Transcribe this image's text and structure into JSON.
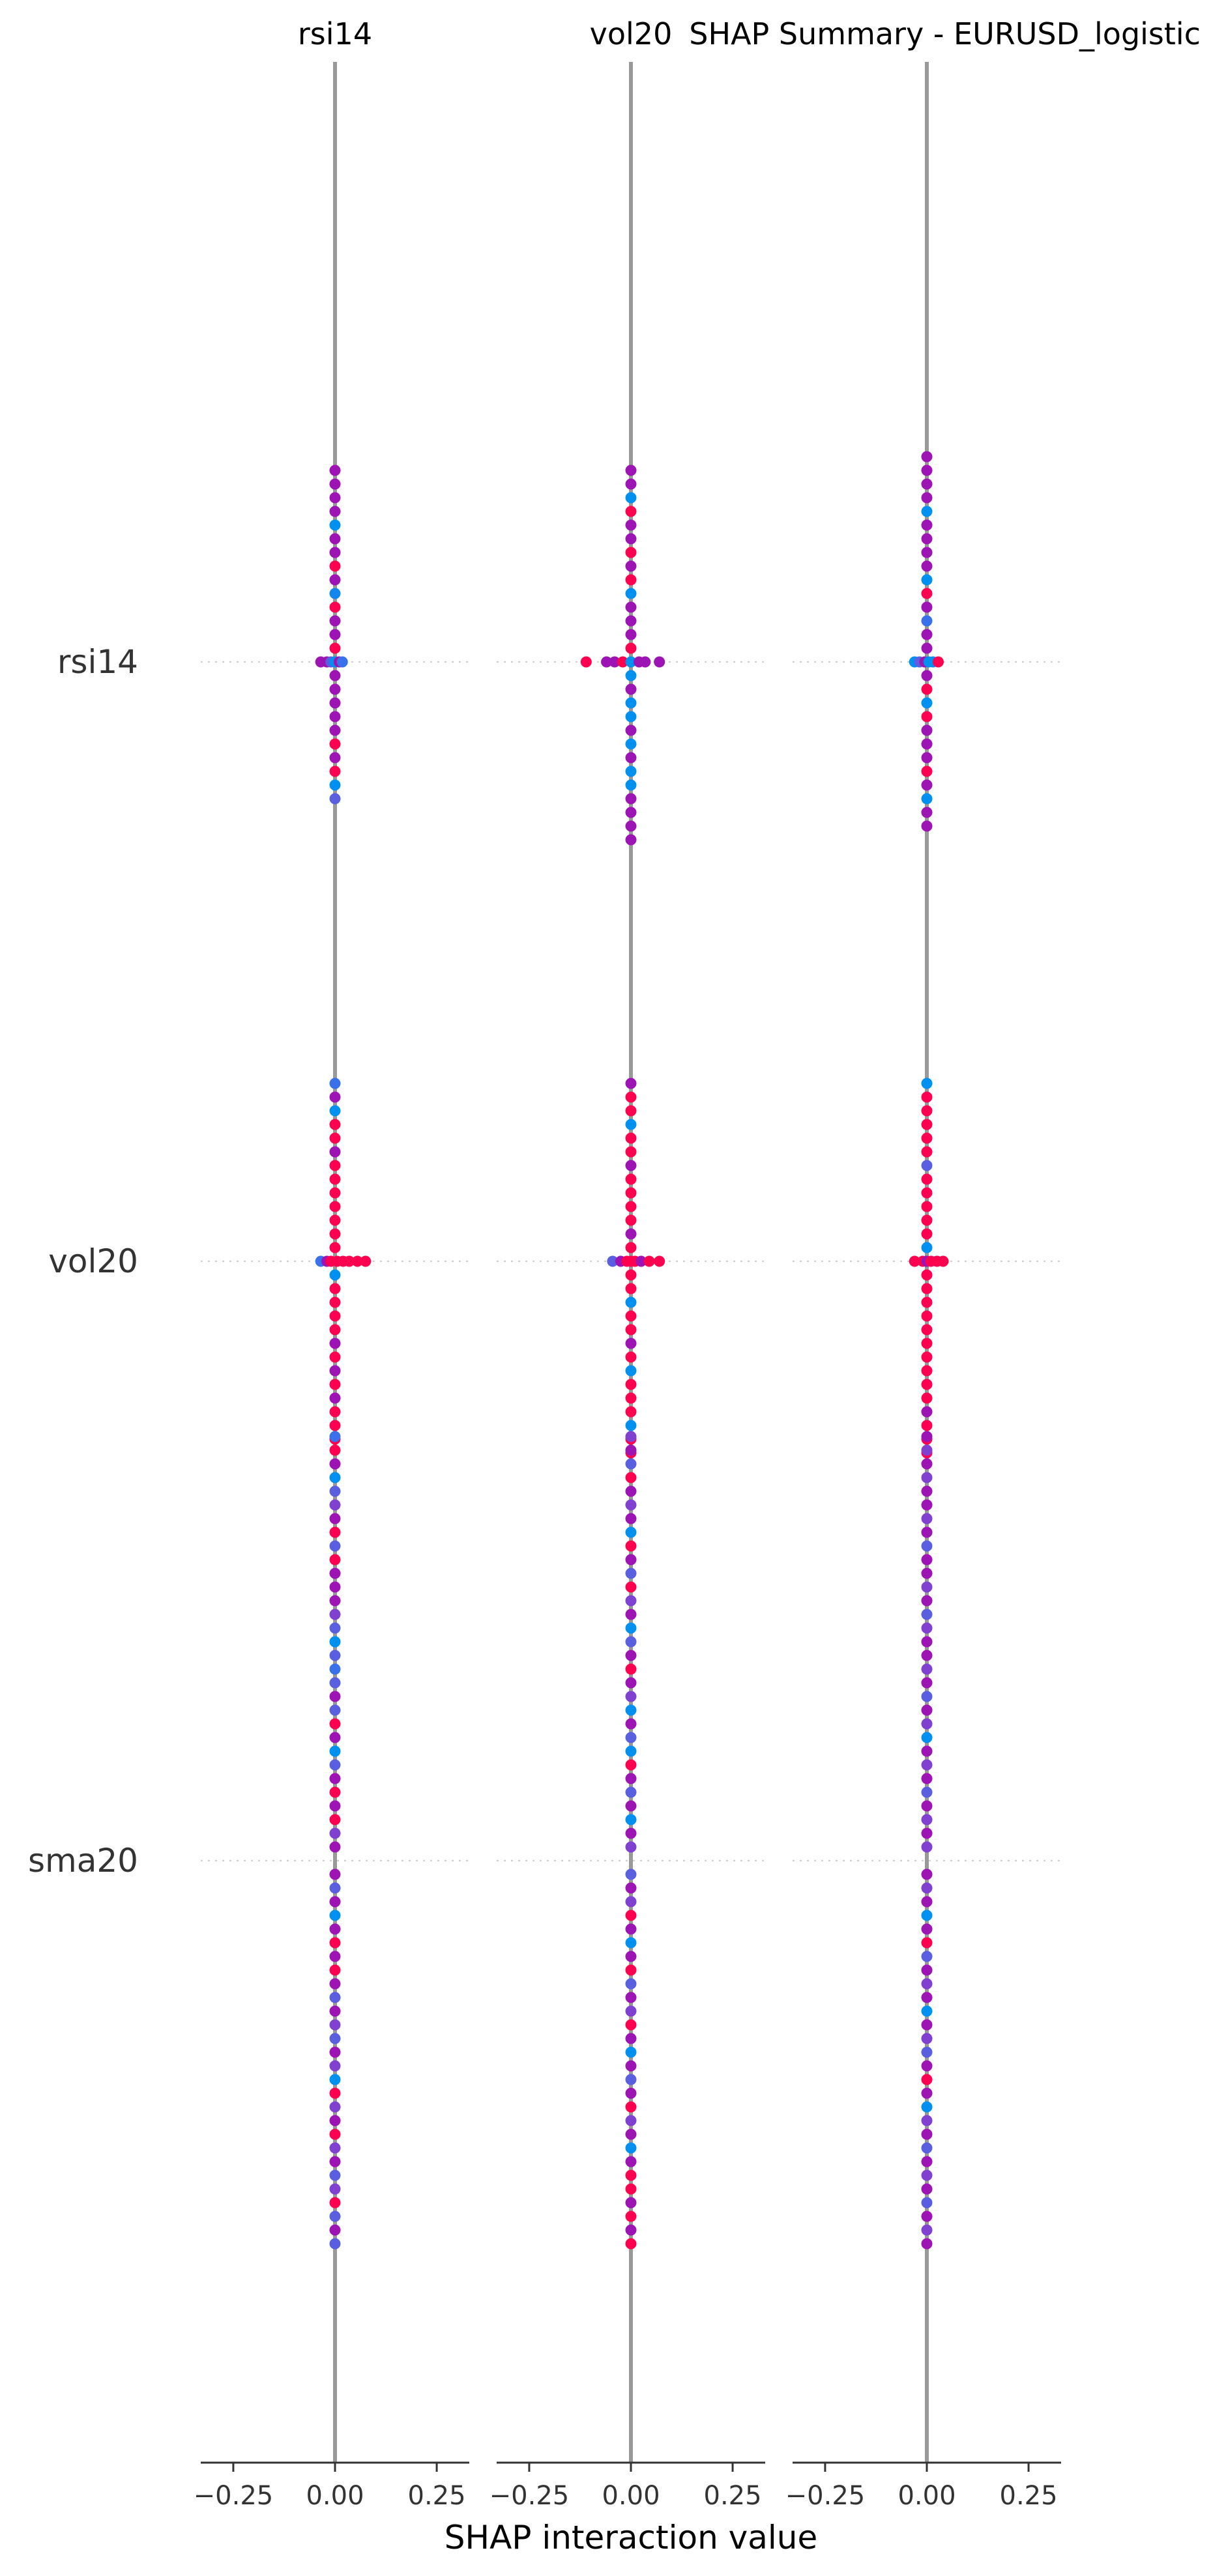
{
  "chart_data": {
    "type": "scatter",
    "subtype": "shap-interaction-summary",
    "title": "SHAP Summary - EURUSD_logistic",
    "xlabel": "SHAP interaction value",
    "xlim": [
      -0.33,
      0.33
    ],
    "xticks": [
      -0.25,
      0.0,
      0.25
    ],
    "xtick_labels": [
      "−0.25",
      "0.00",
      "0.25"
    ],
    "features": [
      "rsi14",
      "vol20",
      "sma20"
    ],
    "panels": [
      {
        "title": "rsi14"
      },
      {
        "title": "vol20"
      },
      {
        "title": ""
      }
    ],
    "rows": [
      {
        "label": "rsi14",
        "panels": [
          {
            "spread": [
              -0.035,
              -0.02,
              -0.01,
              0.0,
              0.01,
              0.018
            ],
            "spread_colors": [
              "#9c14b4",
              "#9c14b4",
              "#5a5fe0",
              "#0090f0",
              "#9c14b4",
              "#3a70ea"
            ],
            "stack_up": [
              "#ff0050",
              "#9c14b4",
              "#9c14b4",
              "#ff0050",
              "#1486ee",
              "#9c14b4",
              "#ff0050",
              "#9c14b4",
              "#9c14b4",
              "#0090f0",
              "#9c14b4",
              "#9c14b4",
              "#9c14b4",
              "#9c14b4"
            ],
            "stack_down": [
              "#9c14b4",
              "#9c14b4",
              "#9c14b4",
              "#9c14b4",
              "#9c14b4",
              "#ff0050",
              "#9c14b4",
              "#ff0050",
              "#0090f0",
              "#5a5fe0"
            ]
          },
          {
            "spread": [
              -0.11,
              -0.06,
              -0.04,
              -0.02,
              0.0,
              0.02,
              0.035,
              0.07
            ],
            "spread_colors": [
              "#ff0050",
              "#9c14b4",
              "#9c14b4",
              "#ff0050",
              "#0090f0",
              "#9c14b4",
              "#9c14b4",
              "#9c14b4"
            ],
            "stack_up": [
              "#ff0050",
              "#9c14b4",
              "#9c14b4",
              "#9c14b4",
              "#0090f0",
              "#ff0050",
              "#9c14b4",
              "#ff0050",
              "#9c14b4",
              "#9c14b4",
              "#ff0050",
              "#0090f0",
              "#9c14b4",
              "#9c14b4"
            ],
            "stack_down": [
              "#0090f0",
              "#9c14b4",
              "#0090f0",
              "#0090f0",
              "#9c14b4",
              "#0090f0",
              "#9c14b4",
              "#0090f0",
              "#0090f0",
              "#9c14b4",
              "#9c14b4",
              "#9c14b4",
              "#9c14b4"
            ]
          },
          {
            "spread": [
              -0.03,
              -0.018,
              -0.005,
              0.005,
              0.015,
              0.028
            ],
            "spread_colors": [
              "#0090f0",
              "#5a5fe0",
              "#9c14b4",
              "#0090f0",
              "#0090f0",
              "#ff0050"
            ],
            "stack_up": [
              "#9c14b4",
              "#9c14b4",
              "#3a70ea",
              "#9c14b4",
              "#ff0050",
              "#0090f0",
              "#9c14b4",
              "#9c14b4",
              "#9c14b4",
              "#9c14b4",
              "#0090f0",
              "#9c14b4",
              "#9c14b4",
              "#9c14b4",
              "#9c14b4"
            ],
            "stack_down": [
              "#9c14b4",
              "#ff0050",
              "#0090f0",
              "#ff0050",
              "#9c14b4",
              "#9c14b4",
              "#9c14b4",
              "#ff0050",
              "#9c14b4",
              "#0090f0",
              "#9c14b4",
              "#9c14b4"
            ]
          }
        ]
      },
      {
        "label": "vol20",
        "panels": [
          {
            "spread": [
              -0.035,
              -0.02,
              -0.01,
              0.005,
              0.02,
              0.035,
              0.055,
              0.075
            ],
            "spread_colors": [
              "#3a70ea",
              "#9c14b4",
              "#ff0050",
              "#ff0050",
              "#ff0050",
              "#ff0050",
              "#ff0050",
              "#ff0050"
            ],
            "stack_up": [
              "#ff0050",
              "#ff0050",
              "#ff0050",
              "#ff0050",
              "#ff0050",
              "#ff0050",
              "#ff0050",
              "#9c14b4",
              "#ff0050",
              "#ff0050",
              "#0090f0",
              "#9c14b4",
              "#3a70ea"
            ],
            "stack_down": [
              "#0090f0",
              "#ff0050",
              "#ff0050",
              "#ff0050",
              "#ff0050",
              "#9c14b4",
              "#ff0050",
              "#9c14b4",
              "#ff0050",
              "#9c14b4",
              "#ff0050",
              "#ff0050",
              "#ff0050"
            ]
          },
          {
            "spread": [
              -0.045,
              -0.025,
              -0.01,
              0.0,
              0.01,
              0.025,
              0.045,
              0.07
            ],
            "spread_colors": [
              "#5a5fe0",
              "#9c14b4",
              "#ff0050",
              "#ff0050",
              "#ff0050",
              "#9c14b4",
              "#ff0050",
              "#ff0050"
            ],
            "stack_up": [
              "#ff0050",
              "#9c14b4",
              "#ff0050",
              "#ff0050",
              "#ff0050",
              "#ff0050",
              "#9c14b4",
              "#ff0050",
              "#ff0050",
              "#0090f0",
              "#ff0050",
              "#ff0050",
              "#9c14b4"
            ],
            "stack_down": [
              "#ff0050",
              "#ff0050",
              "#0090f0",
              "#ff0050",
              "#ff0050",
              "#9c14b4",
              "#ff0050",
              "#0090f0",
              "#ff0050",
              "#ff0050",
              "#ff0050",
              "#0090f0",
              "#ff0050",
              "#ff0050"
            ]
          },
          {
            "spread": [
              -0.03,
              -0.01,
              0.0,
              0.01,
              0.025,
              0.04
            ],
            "spread_colors": [
              "#ff0050",
              "#ff0050",
              "#9c14b4",
              "#ff0050",
              "#ff0050",
              "#ff0050"
            ],
            "stack_up": [
              "#0090f0",
              "#ff0050",
              "#ff0050",
              "#ff0050",
              "#ff0050",
              "#ff0050",
              "#5a5fe0",
              "#ff0050",
              "#ff0050",
              "#ff0050",
              "#ff0050",
              "#ff0050",
              "#0090f0"
            ],
            "stack_down": [
              "#ff0050",
              "#ff0050",
              "#ff0050",
              "#ff0050",
              "#ff0050",
              "#ff0050",
              "#ff0050",
              "#ff0050",
              "#ff0050",
              "#ff0050",
              "#9c14b4",
              "#ff0050",
              "#ff0050",
              "#ff0050"
            ]
          }
        ]
      },
      {
        "label": "sma20",
        "panels": [
          {
            "spread": [],
            "spread_colors": [],
            "stack_up": [
              "#9c14b4",
              "#8040d0",
              "#ff0050",
              "#9c14b4",
              "#ff0050",
              "#9c14b4",
              "#5a5fe0",
              "#0090f0",
              "#9c14b4",
              "#ff0050",
              "#5a5fe0",
              "#9c14b4",
              "#5a5fe0",
              "#3a70ea",
              "#5a5fe0",
              "#0090f0",
              "#5a5fe0",
              "#8040d0",
              "#9c14b4",
              "#9c14b4",
              "#9c14b4",
              "#ff0050",
              "#5a5fe0",
              "#ff0050",
              "#9c14b4",
              "#8040d0",
              "#5a5fe0",
              "#0090f0",
              "#9c14b4",
              "#ff0050",
              "#3a70ea"
            ],
            "stack_down": [
              "#9c14b4",
              "#5a5fe0",
              "#9c14b4",
              "#0090f0",
              "#9c14b4",
              "#ff0050",
              "#9c14b4",
              "#ff0050",
              "#9c14b4",
              "#5a5fe0",
              "#9c14b4",
              "#8040d0",
              "#5a5fe0",
              "#9c14b4",
              "#8040d0",
              "#0090f0",
              "#ff0050",
              "#8040d0",
              "#9c14b4",
              "#ff0050",
              "#8040d0",
              "#9c14b4",
              "#5a5fe0",
              "#8040d0",
              "#ff0050",
              "#5a5fe0",
              "#9c14b4",
              "#5a5fe0"
            ]
          },
          {
            "spread": [],
            "spread_colors": [],
            "stack_up": [
              "#8040d0",
              "#9c14b4",
              "#0090f0",
              "#9c14b4",
              "#5a5fe0",
              "#9c14b4",
              "#ff0050",
              "#0090f0",
              "#5a5fe0",
              "#9c14b4",
              "#0090f0",
              "#8040d0",
              "#9c14b4",
              "#ff0050",
              "#9c14b4",
              "#5a5fe0",
              "#0090f0",
              "#9c14b4",
              "#8040d0",
              "#ff0050",
              "#5a5fe0",
              "#9c14b4",
              "#ff0050",
              "#0090f0",
              "#9c14b4",
              "#8040d0",
              "#9c14b4",
              "#ff0050",
              "#5a5fe0",
              "#9c14b4",
              "#8040d0"
            ],
            "stack_down": [
              "#5a5fe0",
              "#9c14b4",
              "#8040d0",
              "#ff0050",
              "#9c14b4",
              "#0090f0",
              "#9c14b4",
              "#ff0050",
              "#5a5fe0",
              "#9c14b4",
              "#8040d0",
              "#ff0050",
              "#9c14b4",
              "#0090f0",
              "#9c14b4",
              "#5a5fe0",
              "#9c14b4",
              "#ff0050",
              "#8040d0",
              "#9c14b4",
              "#0090f0",
              "#9c14b4",
              "#ff0050",
              "#ff0050",
              "#9c14b4",
              "#ff0050",
              "#9c14b4",
              "#ff0050"
            ]
          },
          {
            "spread": [],
            "spread_colors": [],
            "stack_up": [
              "#8040d0",
              "#9c14b4",
              "#8040d0",
              "#9c14b4",
              "#5a5fe0",
              "#9c14b4",
              "#8040d0",
              "#9c14b4",
              "#0090f0",
              "#8040d0",
              "#9c14b4",
              "#5a5fe0",
              "#9c14b4",
              "#8040d0",
              "#9c14b4",
              "#9c14b4",
              "#8040d0",
              "#5a5fe0",
              "#9c14b4",
              "#8040d0",
              "#9c14b4",
              "#9c14b4",
              "#5a5fe0",
              "#9c14b4",
              "#8040d0",
              "#9c14b4",
              "#9c14b4",
              "#8040d0",
              "#9c14b4",
              "#8040d0",
              "#9c14b4"
            ],
            "stack_down": [
              "#9c14b4",
              "#8040d0",
              "#9c14b4",
              "#0090f0",
              "#9c14b4",
              "#ff0050",
              "#5a5fe0",
              "#9c14b4",
              "#8040d0",
              "#9c14b4",
              "#0090f0",
              "#9c14b4",
              "#8040d0",
              "#5a5fe0",
              "#9c14b4",
              "#ff0050",
              "#9c14b4",
              "#0090f0",
              "#8040d0",
              "#9c14b4",
              "#5a5fe0",
              "#9c14b4",
              "#8040d0",
              "#9c14b4",
              "#5a5fe0",
              "#9c14b4",
              "#8040d0",
              "#9c14b4"
            ]
          }
        ]
      }
    ],
    "grid": false,
    "colors": {
      "zero_line": "#999999",
      "axis": "#333333",
      "guide": "#cccccc"
    }
  }
}
